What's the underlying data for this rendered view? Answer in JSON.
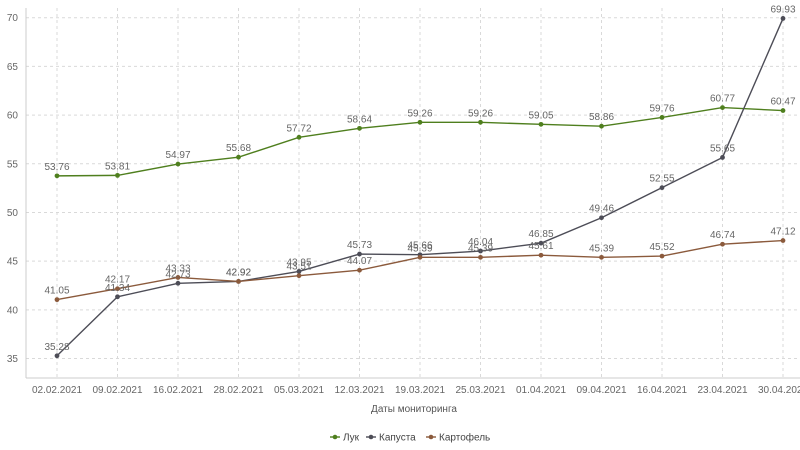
{
  "chart_data": {
    "type": "line",
    "categories": [
      "02.02.2021",
      "09.02.2021",
      "16.02.2021",
      "28.02.2021",
      "05.03.2021",
      "12.03.2021",
      "19.03.2021",
      "25.03.2021",
      "01.04.2021",
      "09.04.2021",
      "16.04.2021",
      "23.04.2021",
      "30.04.2021"
    ],
    "series": [
      {
        "name": "Лук",
        "color": "#4f7f1e",
        "values": [
          53.76,
          53.81,
          54.97,
          55.68,
          57.72,
          58.64,
          59.26,
          59.26,
          59.05,
          58.86,
          59.76,
          60.77,
          60.47
        ]
      },
      {
        "name": "Капуста",
        "color": "#4d4d57",
        "values": [
          35.28,
          41.34,
          42.73,
          42.92,
          43.95,
          45.73,
          45.66,
          46.04,
          46.85,
          49.46,
          52.55,
          55.65,
          69.93
        ]
      },
      {
        "name": "Картофель",
        "color": "#8b5a3c",
        "values": [
          41.05,
          42.17,
          43.33,
          42.92,
          43.51,
          44.07,
          45.39,
          45.39,
          45.61,
          45.39,
          45.52,
          46.74,
          47.12
        ]
      }
    ],
    "xlabel": "Даты мониторинга",
    "ylabel": "",
    "ylim": [
      33,
      71
    ],
    "yticks": [
      35,
      40,
      45,
      50,
      55,
      60,
      65,
      70
    ],
    "grid": true,
    "legend_position": "bottom-center"
  }
}
